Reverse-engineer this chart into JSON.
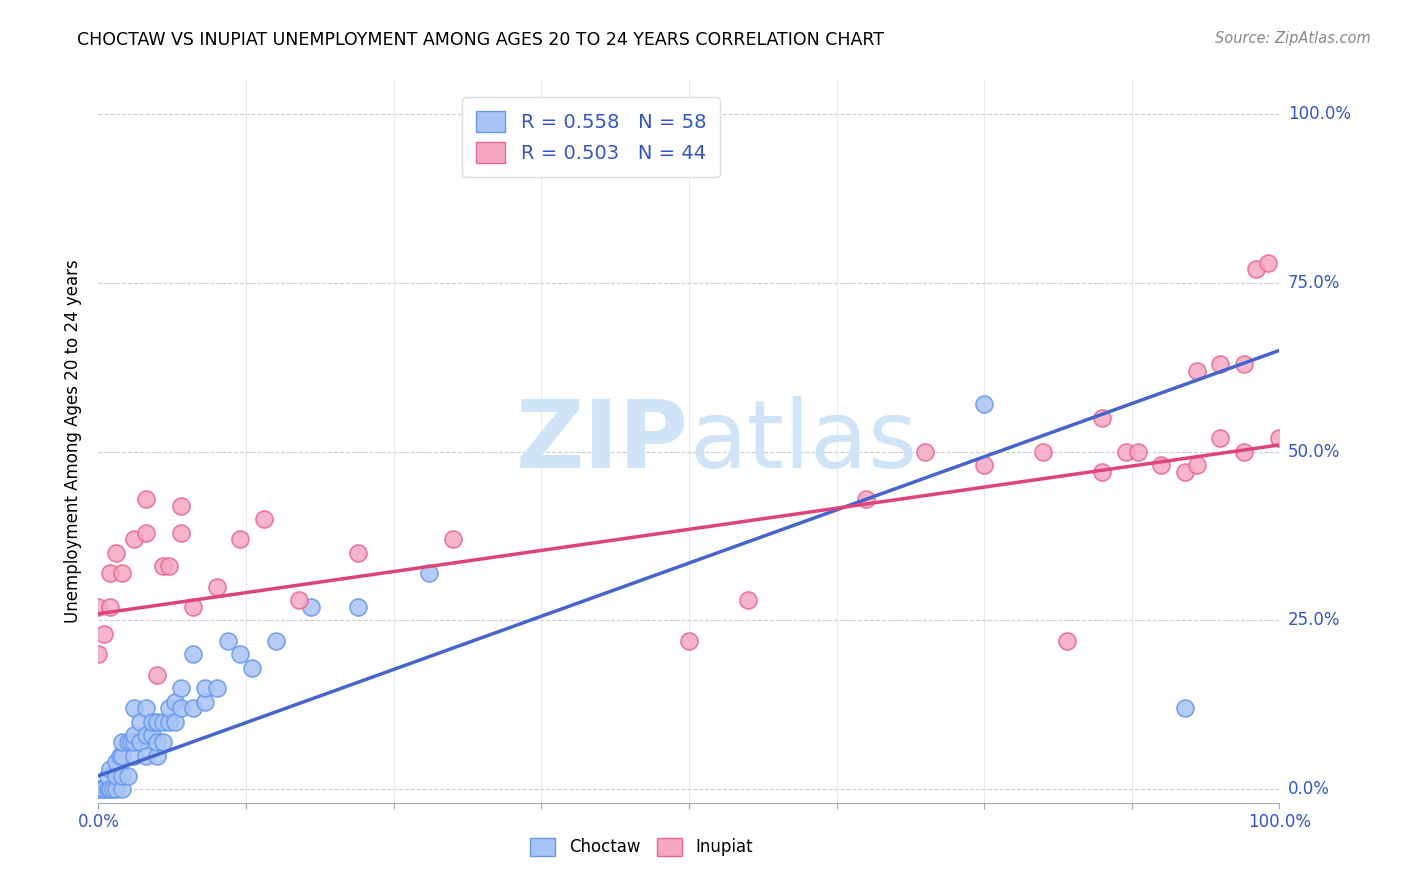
{
  "title": "CHOCTAW VS INUPIAT UNEMPLOYMENT AMONG AGES 20 TO 24 YEARS CORRELATION CHART",
  "source": "Source: ZipAtlas.com",
  "ylabel": "Unemployment Among Ages 20 to 24 years",
  "xlim": [
    0,
    1
  ],
  "ylim": [
    -0.02,
    1.05
  ],
  "ytick_labels": [
    "0.0%",
    "25.0%",
    "50.0%",
    "75.0%",
    "100.0%"
  ],
  "ytick_values": [
    0.0,
    0.25,
    0.5,
    0.75,
    1.0
  ],
  "legend_choctaw_R": "R = 0.558",
  "legend_choctaw_N": "N = 58",
  "legend_inupiat_R": "R = 0.503",
  "legend_inupiat_N": "N = 44",
  "choctaw_color": "#a8c4f5",
  "inupiat_color": "#f5a8c4",
  "choctaw_edge_color": "#6699ee",
  "inupiat_edge_color": "#ee6688",
  "choctaw_line_color": "#4466cc",
  "inupiat_line_color": "#dd4477",
  "legend_text_color": "#3355cc",
  "watermark_color": "#d0e4f7",
  "background_color": "#ffffff",
  "choctaw_line_x0": 0.0,
  "choctaw_line_y0": 0.02,
  "choctaw_line_x1": 1.0,
  "choctaw_line_y1": 0.65,
  "inupiat_line_x0": 0.0,
  "inupiat_line_y0": 0.26,
  "inupiat_line_x1": 1.0,
  "inupiat_line_y1": 0.51,
  "choctaw_x": [
    0.0,
    0.0,
    0.0,
    0.0,
    0.005,
    0.005,
    0.008,
    0.008,
    0.01,
    0.01,
    0.012,
    0.015,
    0.015,
    0.015,
    0.018,
    0.02,
    0.02,
    0.02,
    0.02,
    0.025,
    0.025,
    0.028,
    0.03,
    0.03,
    0.03,
    0.03,
    0.035,
    0.035,
    0.04,
    0.04,
    0.04,
    0.045,
    0.045,
    0.05,
    0.05,
    0.05,
    0.055,
    0.055,
    0.06,
    0.06,
    0.065,
    0.065,
    0.07,
    0.07,
    0.08,
    0.08,
    0.09,
    0.09,
    0.1,
    0.11,
    0.12,
    0.13,
    0.15,
    0.18,
    0.22,
    0.28,
    0.75,
    0.92
  ],
  "choctaw_y": [
    0.0,
    0.0,
    0.0,
    0.0,
    0.0,
    0.0,
    0.0,
    0.02,
    0.0,
    0.03,
    0.0,
    0.0,
    0.02,
    0.04,
    0.05,
    0.0,
    0.02,
    0.05,
    0.07,
    0.02,
    0.07,
    0.07,
    0.05,
    0.07,
    0.08,
    0.12,
    0.07,
    0.1,
    0.05,
    0.08,
    0.12,
    0.08,
    0.1,
    0.05,
    0.07,
    0.1,
    0.07,
    0.1,
    0.1,
    0.12,
    0.1,
    0.13,
    0.12,
    0.15,
    0.12,
    0.2,
    0.13,
    0.15,
    0.15,
    0.22,
    0.2,
    0.18,
    0.22,
    0.27,
    0.27,
    0.32,
    0.57,
    0.12
  ],
  "inupiat_x": [
    0.0,
    0.0,
    0.005,
    0.01,
    0.01,
    0.015,
    0.02,
    0.03,
    0.04,
    0.04,
    0.05,
    0.055,
    0.06,
    0.07,
    0.07,
    0.08,
    0.1,
    0.12,
    0.14,
    0.17,
    0.22,
    0.3,
    0.5,
    0.55,
    0.65,
    0.7,
    0.75,
    0.8,
    0.82,
    0.85,
    0.85,
    0.87,
    0.88,
    0.9,
    0.92,
    0.93,
    0.93,
    0.95,
    0.95,
    0.97,
    0.97,
    0.98,
    0.99,
    1.0
  ],
  "inupiat_y": [
    0.2,
    0.27,
    0.23,
    0.27,
    0.32,
    0.35,
    0.32,
    0.37,
    0.38,
    0.43,
    0.17,
    0.33,
    0.33,
    0.38,
    0.42,
    0.27,
    0.3,
    0.37,
    0.4,
    0.28,
    0.35,
    0.37,
    0.22,
    0.28,
    0.43,
    0.5,
    0.48,
    0.5,
    0.22,
    0.47,
    0.55,
    0.5,
    0.5,
    0.48,
    0.47,
    0.48,
    0.62,
    0.52,
    0.63,
    0.5,
    0.63,
    0.77,
    0.78,
    0.52
  ]
}
